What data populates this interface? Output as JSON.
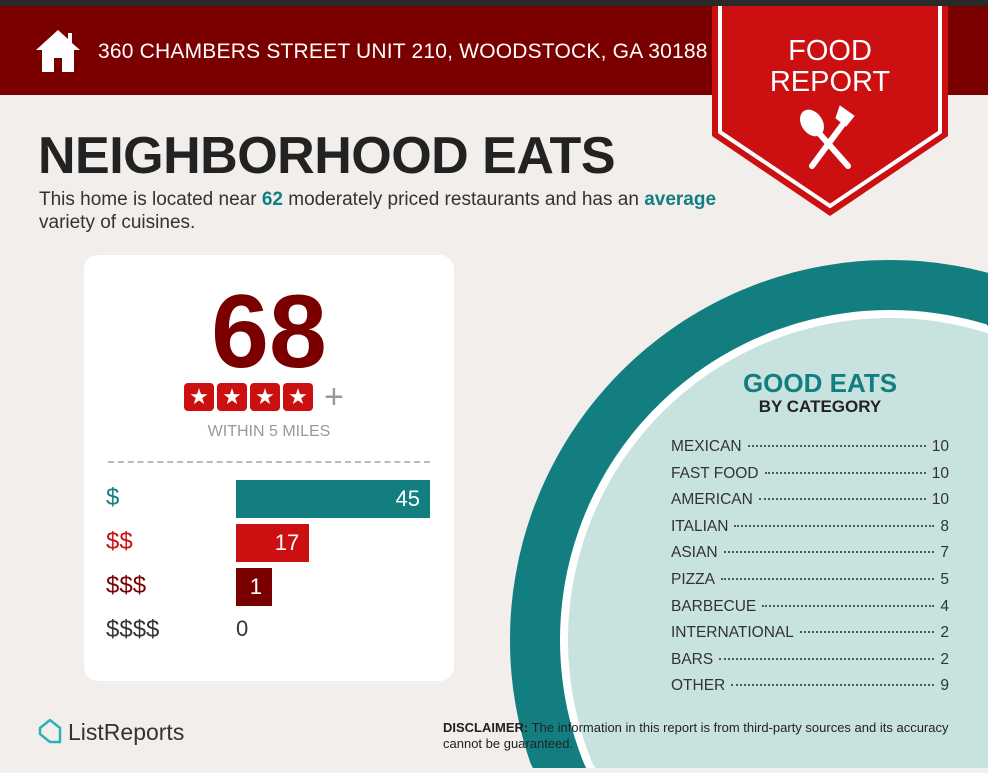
{
  "header": {
    "address": "360 CHAMBERS STREET UNIT 210, WOODSTOCK, GA 30188",
    "icon": "house-icon"
  },
  "badge": {
    "line1": "FOOD",
    "line2": "REPORT",
    "icon": "spoon-fork-icon"
  },
  "title": "NEIGHBORHOOD EATS",
  "summary": {
    "pre": "This home is located near ",
    "count": "62",
    "mid": " moderately priced restaurants and has an ",
    "variety": "average",
    "post": " variety of cuisines."
  },
  "score_card": {
    "score": "68",
    "stars": 4,
    "plus": "+",
    "within": "WITHIN 5 MILES",
    "price_rows": [
      {
        "label": "$",
        "value": 45,
        "value_text": "45",
        "color": "#127e80"
      },
      {
        "label": "$$",
        "value": 17,
        "value_text": "17",
        "color": "#cc0f10"
      },
      {
        "label": "$$$",
        "value": 1,
        "value_text": "1",
        "color": "#7a0000"
      },
      {
        "label": "$$$$",
        "value": 0,
        "value_text": "0",
        "color": "#333333"
      }
    ]
  },
  "good_eats": {
    "title": "GOOD EATS",
    "subtitle": "BY CATEGORY",
    "categories": [
      {
        "name": "MEXICAN",
        "count": "10"
      },
      {
        "name": "FAST FOOD",
        "count": "10"
      },
      {
        "name": "AMERICAN",
        "count": "10"
      },
      {
        "name": "ITALIAN",
        "count": "8"
      },
      {
        "name": "ASIAN",
        "count": "7"
      },
      {
        "name": "PIZZA",
        "count": "5"
      },
      {
        "name": "BARBECUE",
        "count": "4"
      },
      {
        "name": "INTERNATIONAL",
        "count": "2"
      },
      {
        "name": "BARS",
        "count": "2"
      },
      {
        "name": "OTHER",
        "count": "9"
      }
    ]
  },
  "footer": {
    "logo": "ListReports",
    "disclaimer_label": "DISCLAIMER:",
    "disclaimer_text": " The information in this report is from third-party sources and its accuracy cannot be guaranteed."
  },
  "colors": {
    "maroon": "#7a0000",
    "red": "#cc0f10",
    "teal": "#127e80",
    "light_teal": "#c8e2df"
  }
}
